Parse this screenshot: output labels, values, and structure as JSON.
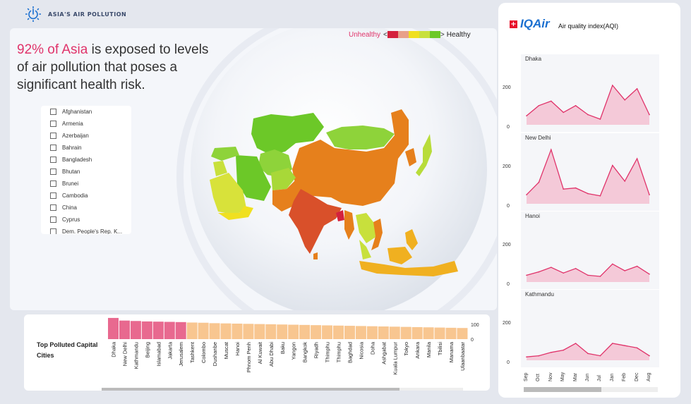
{
  "app": {
    "title": "ASIA'S AIR POLLUTION"
  },
  "headline": {
    "highlight": "92% of Asia",
    "rest": " is exposed to levels of air pollution that poses a significant health risk."
  },
  "legend": {
    "unhealthy": "Unhealthy",
    "healthy": "Healthy",
    "arrow_left": "<",
    "arrow_right": ">",
    "colors": [
      "#d4213d",
      "#e8a08a",
      "#f0e020",
      "#c8e03c",
      "#6cc828"
    ]
  },
  "countries": [
    {
      "label": "Afghanistan"
    },
    {
      "label": "Armenia"
    },
    {
      "label": "Azerbaijan"
    },
    {
      "label": "Bahrain"
    },
    {
      "label": "Bangladesh"
    },
    {
      "label": "Bhutan"
    },
    {
      "label": "Brunei"
    },
    {
      "label": "Cambodia"
    },
    {
      "label": "China"
    },
    {
      "label": "Cyprus"
    },
    {
      "label": "Dem. People's Rep. K..."
    }
  ],
  "top_cities": {
    "title": "Top Polluted Capital Cities",
    "axis_ticks": [
      "100",
      "0"
    ],
    "cities": [
      "Dhaka",
      "New Delhi",
      "Kathmandu",
      "Beijing",
      "Islamabad",
      "Jakarta",
      "Jerusalem",
      "Tashkent",
      "Colombo",
      "Dushanbe",
      "Muscat",
      "Hanoi",
      "Phnom Penh",
      "Al Kuwait",
      "Abu Dhabi",
      "Baku",
      "Yangon",
      "Bangkok",
      "Riyadh",
      "Thimphu",
      "Thimphu",
      "Baghdad",
      "Nicosia",
      "Doha",
      "Ashgabat",
      "Kuala Lumpur",
      "Tokyo",
      "Ankara",
      "Manila",
      "Tbilisi",
      "Manama",
      "Ulaanbaatar"
    ]
  },
  "iqair": {
    "brand": "IQAir",
    "flag": "+",
    "subtitle": "Air quality index(AQI)",
    "ticks": [
      "200",
      "0"
    ],
    "months": [
      "Sep",
      "Oct",
      "Nov",
      "May",
      "Mar",
      "Jun",
      "Jul",
      "Jan",
      "Feb",
      "Dec",
      "Aug"
    ]
  },
  "chart_data": [
    {
      "type": "bar",
      "title": "Top Polluted Capital Cities",
      "categories": [
        "Dhaka",
        "New Delhi",
        "Kathmandu",
        "Beijing",
        "Islamabad",
        "Jakarta",
        "Jerusalem",
        "Tashkent",
        "Colombo",
        "Dushanbe",
        "Muscat",
        "Hanoi",
        "Phnom Penh",
        "Al Kuwait",
        "Abu Dhabi",
        "Baku",
        "Yangon",
        "Bangkok",
        "Riyadh",
        "Thimphu",
        "Thimphu",
        "Baghdad",
        "Nicosia",
        "Doha",
        "Ashgabat",
        "Kuala Lumpur",
        "Tokyo",
        "Ankara",
        "Manila",
        "Tbilisi",
        "Manama",
        "Ulaanbaatar"
      ],
      "values": [
        97,
        85,
        83,
        81,
        80,
        79,
        78,
        76,
        75,
        73,
        72,
        71,
        70,
        69,
        68,
        67,
        66,
        65,
        64,
        63,
        62,
        61,
        60,
        59,
        58,
        57,
        56,
        55,
        54,
        53,
        52,
        51
      ],
      "highlight_count": 7,
      "colors": {
        "highlight": "#e8698f",
        "normal": "#f8c690"
      },
      "ylim": [
        0,
        100
      ]
    },
    {
      "type": "area",
      "name": "Dhaka",
      "x": [
        "Sep",
        "Oct",
        "Nov",
        "May",
        "Mar",
        "Jun",
        "Jul",
        "Jan",
        "Feb",
        "Dec",
        "Aug"
      ],
      "values": [
        40,
        85,
        105,
        55,
        85,
        45,
        25,
        175,
        110,
        160,
        45
      ],
      "ylim": [
        0,
        250
      ],
      "color": "#e0336a"
    },
    {
      "type": "area",
      "name": "New Delhi",
      "x": [
        "Sep",
        "Oct",
        "Nov",
        "May",
        "Mar",
        "Jun",
        "Jul",
        "Jan",
        "Feb",
        "Dec",
        "Aug"
      ],
      "values": [
        40,
        95,
        240,
        65,
        70,
        45,
        35,
        170,
        100,
        200,
        40
      ],
      "ylim": [
        0,
        250
      ],
      "color": "#e0336a"
    },
    {
      "type": "area",
      "name": "Hanoi",
      "x": [
        "Sep",
        "Oct",
        "Nov",
        "May",
        "Mar",
        "Jun",
        "Jul",
        "Jan",
        "Feb",
        "Dec",
        "Aug"
      ],
      "values": [
        30,
        45,
        65,
        40,
        60,
        30,
        25,
        80,
        50,
        70,
        35
      ],
      "ylim": [
        0,
        250
      ],
      "color": "#e0336a"
    },
    {
      "type": "area",
      "name": "Kathmandu",
      "x": [
        "Sep",
        "Oct",
        "Nov",
        "May",
        "Mar",
        "Jun",
        "Jul",
        "Jan",
        "Feb",
        "Dec",
        "Aug"
      ],
      "values": [
        15,
        20,
        35,
        45,
        75,
        30,
        20,
        75,
        65,
        55,
        20
      ],
      "ylim": [
        0,
        250
      ],
      "color": "#e0336a"
    }
  ]
}
